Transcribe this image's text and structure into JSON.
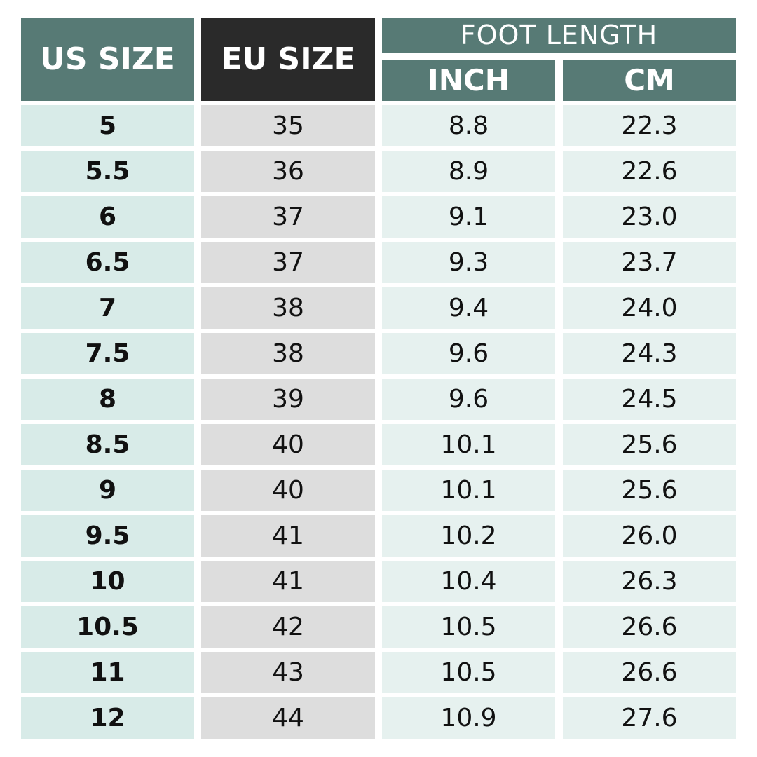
{
  "chart_data": {
    "type": "table",
    "headers": {
      "us_size": "US SIZE",
      "eu_size": "EU SIZE",
      "foot_length": "FOOT LENGTH",
      "inch": "INCH",
      "cm": "CM"
    },
    "rows": [
      {
        "us": "5",
        "eu": "35",
        "inch": "8.8",
        "cm": "22.3"
      },
      {
        "us": "5.5",
        "eu": "36",
        "inch": "8.9",
        "cm": "22.6"
      },
      {
        "us": "6",
        "eu": "37",
        "inch": "9.1",
        "cm": "23.0"
      },
      {
        "us": "6.5",
        "eu": "37",
        "inch": "9.3",
        "cm": "23.7"
      },
      {
        "us": "7",
        "eu": "38",
        "inch": "9.4",
        "cm": "24.0"
      },
      {
        "us": "7.5",
        "eu": "38",
        "inch": "9.6",
        "cm": "24.3"
      },
      {
        "us": "8",
        "eu": "39",
        "inch": "9.6",
        "cm": "24.5"
      },
      {
        "us": "8.5",
        "eu": "40",
        "inch": "10.1",
        "cm": "25.6"
      },
      {
        "us": "9",
        "eu": "40",
        "inch": "10.1",
        "cm": "25.6"
      },
      {
        "us": "9.5",
        "eu": "41",
        "inch": "10.2",
        "cm": "26.0"
      },
      {
        "us": "10",
        "eu": "41",
        "inch": "10.4",
        "cm": "26.3"
      },
      {
        "us": "10.5",
        "eu": "42",
        "inch": "10.5",
        "cm": "26.6"
      },
      {
        "us": "11",
        "eu": "43",
        "inch": "10.5",
        "cm": "26.6"
      },
      {
        "us": "12",
        "eu": "44",
        "inch": "10.9",
        "cm": "27.6"
      }
    ]
  },
  "colors": {
    "header_teal": "#577a75",
    "header_dark": "#2a2a2a",
    "us_cell": "#d8ebe8",
    "eu_cell": "#dddddd",
    "length_cell": "#e6f1ef",
    "text": "#111111",
    "header_text": "#ffffff"
  }
}
